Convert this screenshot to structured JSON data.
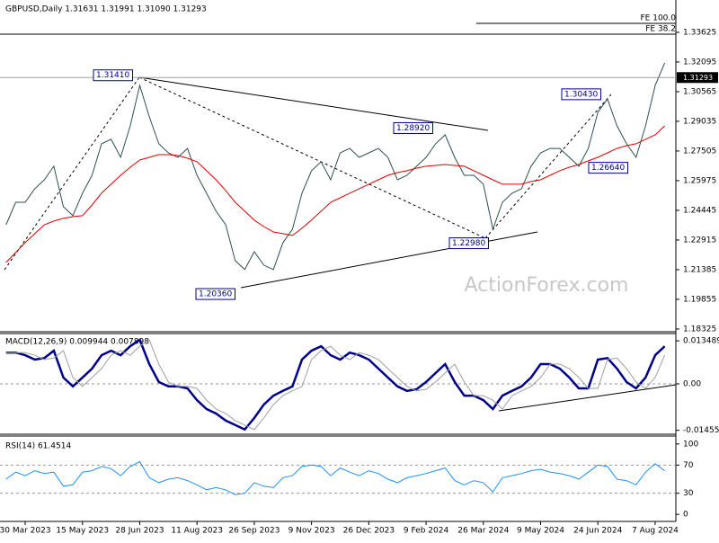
{
  "chart_data": [
    {
      "type": "line",
      "title": "GBPUSD,Daily  1.31631 1.31991 1.31090 1.31293",
      "categories": [
        null,
        null,
        "30 Mar 2023",
        null,
        null,
        null,
        null,
        null,
        "15 May 2023",
        null,
        null,
        null,
        null,
        null,
        "28 Jun 2023",
        null,
        null,
        null,
        null,
        null,
        "11 Aug 2023",
        null,
        null,
        null,
        null,
        null,
        "26 Sep 2023",
        null,
        null,
        null,
        null,
        null,
        "9 Nov 2023",
        null,
        null,
        null,
        null,
        null,
        "26 Dec 2023",
        null,
        null,
        null,
        null,
        null,
        "9 Feb 2024",
        null,
        null,
        null,
        null,
        null,
        "26 Mar 2024",
        null,
        null,
        null,
        null,
        null,
        "9 May 2024",
        null,
        null,
        null,
        null,
        null,
        "24 Jun 2024",
        null,
        null,
        null,
        null,
        null,
        "7 Aug 2024",
        null
      ],
      "series": [
        {
          "color": "#2f4f4f",
          "values": [
            1.237,
            1.2486,
            1.2486,
            1.2556,
            1.2602,
            1.2672,
            1.2463,
            1.2417,
            1.2533,
            1.2625,
            1.2788,
            1.2811,
            1.2718,
            1.288,
            1.3089,
            1.2927,
            1.2788,
            1.2741,
            1.2718,
            1.2764,
            1.2625,
            1.2533,
            1.244,
            1.237,
            1.2185,
            1.2139,
            1.2231,
            1.2162,
            1.2139,
            1.2278,
            1.2347,
            1.2533,
            1.2649,
            1.2695,
            1.2602,
            1.2741,
            1.2764,
            1.2718,
            1.2741,
            1.2764,
            1.2718,
            1.2602,
            1.2625,
            1.2672,
            1.2718,
            1.2788,
            1.2834,
            1.2718,
            1.2625,
            1.2625,
            1.2579,
            1.2347,
            1.2486,
            1.2533,
            1.2556,
            1.2672,
            1.2741,
            1.2764,
            1.2764,
            1.2718,
            1.2672,
            1.2764,
            1.295,
            1.3019,
            1.288,
            1.2788,
            1.2718,
            1.288,
            1.3089,
            1.3205
          ]
        },
        {
          "color": "#e00000",
          "values": [
            1.2176,
            1.2227,
            1.2278,
            1.2324,
            1.237,
            1.2389,
            1.2403,
            1.2412,
            1.2417,
            1.2472,
            1.2533,
            1.2579,
            1.2625,
            1.2667,
            1.2704,
            1.2718,
            1.2732,
            1.2732,
            1.2727,
            1.2713,
            1.2695,
            1.2649,
            1.2602,
            1.2547,
            1.2486,
            1.244,
            1.2394,
            1.2361,
            1.2333,
            1.2324,
            1.2315,
            1.2352,
            1.2394,
            1.244,
            1.2486,
            1.2509,
            1.2533,
            1.2556,
            1.2579,
            1.2602,
            1.2625,
            1.2639,
            1.2649,
            1.2662,
            1.2672,
            1.2676,
            1.2681,
            1.2676,
            1.2672,
            1.2649,
            1.2625,
            1.2602,
            1.2579,
            1.2579,
            1.2579,
            1.2593,
            1.2602,
            1.2625,
            1.2649,
            1.2667,
            1.2681,
            1.27,
            1.2718,
            1.2741,
            1.2764,
            1.2778,
            1.2788,
            1.2811,
            1.2834,
            1.288
          ]
        }
      ],
      "ylim": [
        1.1823,
        1.352
      ],
      "yticks": [
        1.33625,
        1.32095,
        1.30565,
        1.29035,
        1.27505,
        1.25975,
        1.24445,
        1.22915,
        1.21385,
        1.19855,
        1.18325
      ],
      "current_price": 1.31293,
      "annotations": [
        {
          "label": "1.31410",
          "value": 1.3141
        },
        {
          "label": "1.28920",
          "value": 1.2892
        },
        {
          "label": "1.22980",
          "value": 1.2298
        },
        {
          "label": "1.20360",
          "value": 1.2036
        },
        {
          "label": "1.30430",
          "value": 1.3043
        },
        {
          "label": "1.26640",
          "value": 1.2664
        }
      ],
      "levels": [
        "FE 100.0",
        "FE 38.2"
      ],
      "watermark": "ActionForex.com"
    },
    {
      "type": "line",
      "title": "MACD(12,26,9) 0.009944 0.007898",
      "series": [
        {
          "color": "#00008b",
          "values": [
            0.0098,
            0.0098,
            0.009,
            0.0076,
            0.0081,
            0.0104,
            0.002,
            -0.0008,
            0.002,
            0.0048,
            0.009,
            0.0104,
            0.009,
            0.0118,
            0.0138,
            0.0062,
            0.0006,
            -0.0008,
            -0.0008,
            -0.0014,
            -0.0051,
            -0.0079,
            -0.0093,
            -0.0115,
            -0.0129,
            -0.0143,
            -0.0107,
            -0.0065,
            -0.0037,
            -0.0022,
            -0.0008,
            0.0076,
            0.0104,
            0.0118,
            0.009,
            0.0076,
            0.0098,
            0.009,
            0.0076,
            0.0048,
            0.002,
            -0.0008,
            -0.0022,
            -0.0017,
            0.0006,
            0.0034,
            0.0062,
            0.0006,
            -0.0037,
            -0.0037,
            -0.0051,
            -0.0079,
            -0.0037,
            -0.0022,
            -0.0008,
            0.002,
            0.0062,
            0.0062,
            0.0048,
            0.002,
            -0.0014,
            -0.0014,
            0.0076,
            0.0081,
            0.0048,
            0.0006,
            -0.0014,
            0.002,
            0.009,
            0.0118
          ]
        },
        {
          "color": "#a0a0a0",
          "values": [
            0.0098,
            0.0098,
            0.0098,
            0.009,
            0.0076,
            0.0081,
            0.0104,
            0.002,
            -0.0008,
            0.002,
            0.0048,
            0.009,
            0.0104,
            0.009,
            0.0118,
            0.0138,
            0.0062,
            0.0006,
            -0.0008,
            -0.0008,
            -0.0014,
            -0.0051,
            -0.0079,
            -0.0093,
            -0.0115,
            -0.0129,
            -0.0143,
            -0.0107,
            -0.0065,
            -0.0037,
            -0.0022,
            -0.0008,
            0.0076,
            0.0104,
            0.0118,
            0.009,
            0.0076,
            0.0098,
            0.009,
            0.0076,
            0.0048,
            0.002,
            -0.0008,
            -0.0022,
            -0.0017,
            0.0006,
            0.0034,
            0.0062,
            0.0006,
            -0.0037,
            -0.0037,
            -0.0051,
            -0.0079,
            -0.0037,
            -0.0022,
            -0.0008,
            0.002,
            0.0062,
            0.0062,
            0.0048,
            0.002,
            -0.0014,
            -0.0014,
            0.0076,
            0.0081,
            0.0048,
            0.0006,
            -0.0014,
            0.002,
            0.009
          ]
        }
      ],
      "ylim": [
        -0.0155,
        0.0155
      ],
      "yticks": [
        0.013489,
        {
          "value": 0,
          "label": "0.00"
        },
        -0.014554
      ]
    },
    {
      "type": "line",
      "title": "RSI(14) 61.4514",
      "series": [
        {
          "color": "#1e90ff",
          "values": [
            50,
            60,
            55,
            62,
            58,
            60,
            40,
            42,
            60,
            62,
            68,
            65,
            55,
            68,
            75,
            52,
            45,
            50,
            52,
            48,
            42,
            35,
            38,
            35,
            28,
            30,
            45,
            40,
            38,
            52,
            55,
            68,
            70,
            68,
            55,
            66,
            60,
            55,
            62,
            58,
            50,
            45,
            52,
            55,
            58,
            62,
            66,
            48,
            42,
            48,
            45,
            32,
            52,
            55,
            58,
            62,
            64,
            60,
            58,
            55,
            50,
            60,
            70,
            68,
            50,
            48,
            42,
            60,
            72,
            62
          ]
        }
      ],
      "ylim": [
        -10,
        110
      ],
      "yticks": [
        100,
        70,
        30,
        0
      ]
    }
  ]
}
